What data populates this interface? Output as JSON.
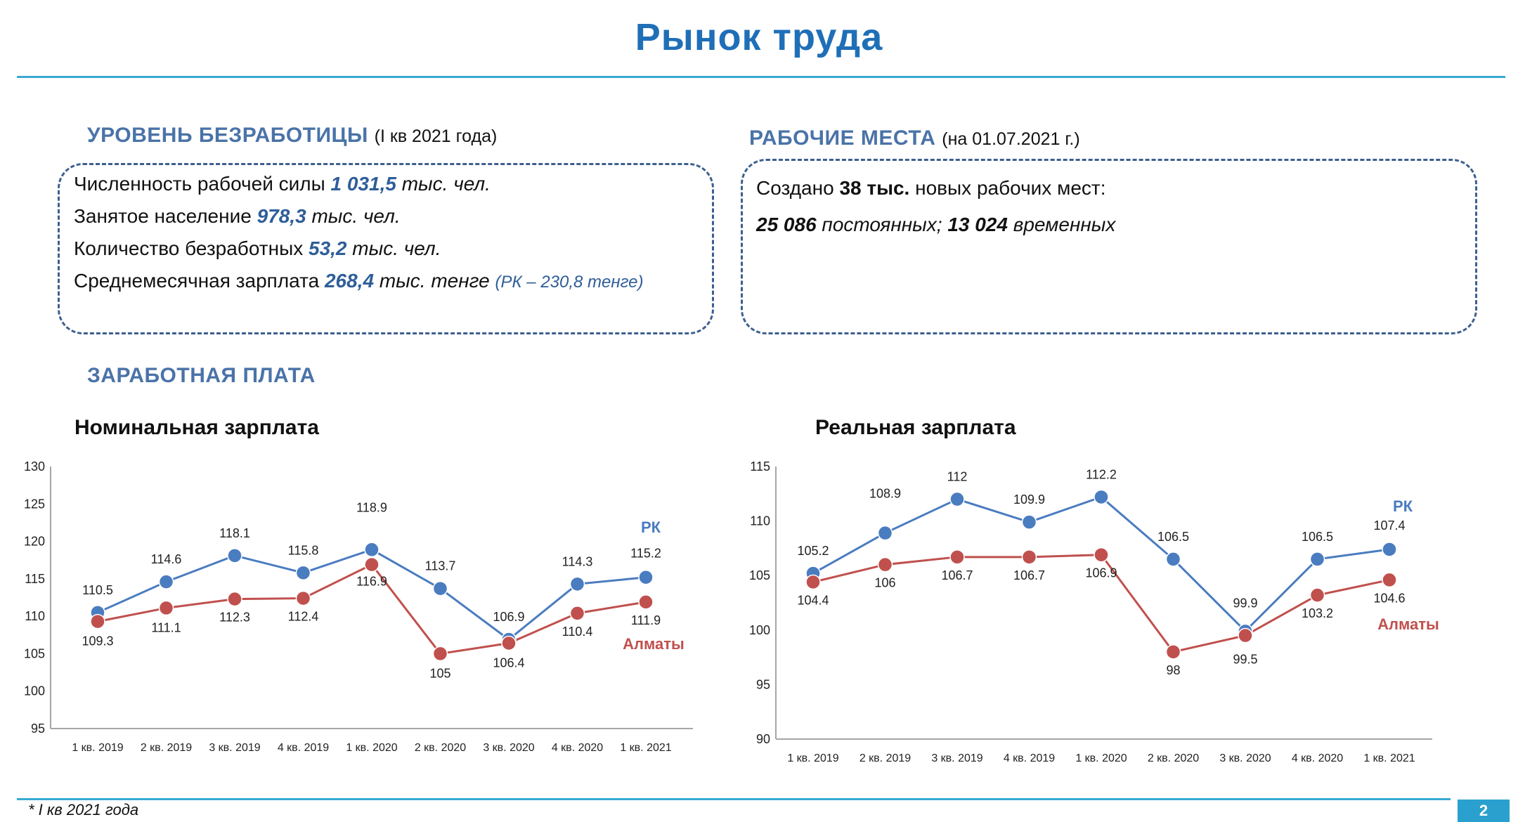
{
  "page": {
    "title": "Рынок труда",
    "footnote": "* I кв 2021 года",
    "page_number": "2"
  },
  "unemployment": {
    "heading": "УРОВЕНЬ БЕЗРАБОТИЦЫ",
    "note": "(I кв 2021 года)",
    "rows": [
      {
        "label": "Численность рабочей силы ",
        "value": "1 031,5",
        "unit": " тыс. чел."
      },
      {
        "label": "Занятое население ",
        "value": "978,3",
        "unit": " тыс. чел."
      },
      {
        "label": "Количество безработных ",
        "value": "53,2",
        "unit": " тыс. чел."
      },
      {
        "label": "Среднемесячная зарплата  ",
        "value": "268,4",
        "unit": " тыс. тенге ",
        "extra": "(РК – 230,8 тенге)"
      }
    ]
  },
  "jobs": {
    "heading": "РАБОЧИЕ МЕСТА",
    "note": "(на 01.07.2021 г.)",
    "line1_pre": "Создано ",
    "line1_bold": "38 тыс.",
    "line1_post": " новых рабочих мест:",
    "line2_a": "25 086",
    "line2_b": " постоянных; ",
    "line2_c": "13 024",
    "line2_d": " временных"
  },
  "salary_heading": "ЗАРАБОТНАЯ ПЛАТА",
  "colors": {
    "rk": "#4a7cc0",
    "almaty": "#c0504d",
    "axis": "#a6a6a6"
  },
  "chart_data": [
    {
      "type": "line",
      "title": "Номинальная зарплата",
      "categories": [
        "1 кв. 2019",
        "2 кв. 2019",
        "3 кв. 2019",
        "4 кв. 2019",
        "1 кв. 2020",
        "2 кв. 2020",
        "3 кв. 2020",
        "4 кв. 2020",
        "1 кв. 2021"
      ],
      "ylim": [
        95,
        130
      ],
      "yticks": [
        95,
        100,
        105,
        110,
        115,
        120,
        125,
        130
      ],
      "grid": false,
      "series": [
        {
          "name": "РК",
          "values": [
            110.5,
            114.6,
            118.1,
            115.8,
            118.9,
            113.7,
            106.9,
            114.3,
            115.2
          ]
        },
        {
          "name": "Алматы",
          "values": [
            109.3,
            111.1,
            112.3,
            112.4,
            116.9,
            105,
            106.4,
            110.4,
            111.9
          ]
        }
      ]
    },
    {
      "type": "line",
      "title": "Реальная зарплата",
      "categories": [
        "1 кв. 2019",
        "2 кв. 2019",
        "3 кв. 2019",
        "4 кв. 2019",
        "1 кв. 2020",
        "2 кв. 2020",
        "3 кв. 2020",
        "4 кв. 2020",
        "1 кв. 2021"
      ],
      "ylim": [
        90,
        115
      ],
      "yticks": [
        90,
        95,
        100,
        105,
        110,
        115
      ],
      "grid": false,
      "series": [
        {
          "name": "РК",
          "values": [
            105.2,
            108.9,
            112,
            109.9,
            112.2,
            106.5,
            99.9,
            106.5,
            107.4
          ]
        },
        {
          "name": "Алматы",
          "values": [
            104.4,
            106,
            106.7,
            106.7,
            106.9,
            98,
            99.5,
            103.2,
            104.6
          ]
        }
      ]
    }
  ]
}
